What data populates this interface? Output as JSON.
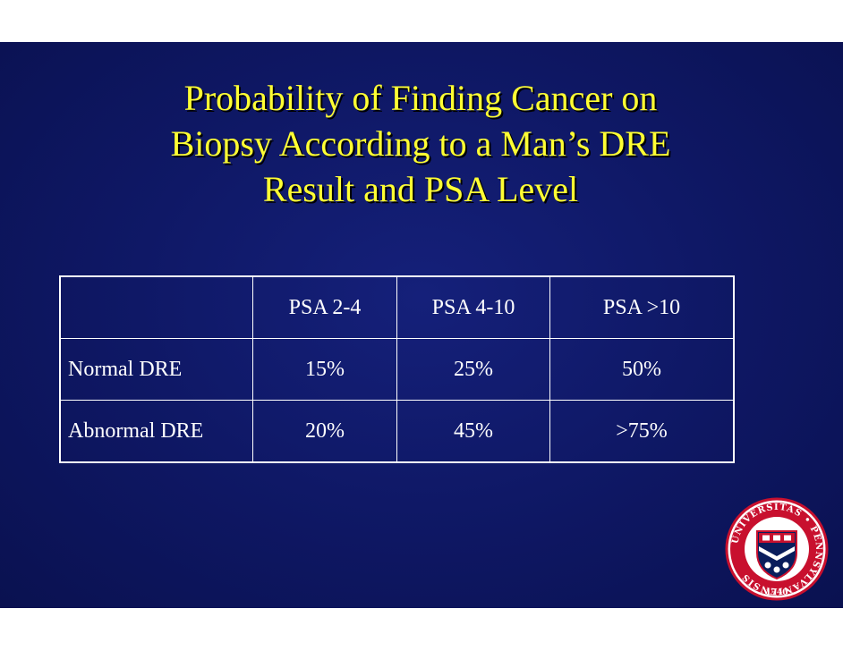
{
  "slide": {
    "title_lines": [
      "Probability of Finding Cancer on",
      "Biopsy According to a Man’s DRE",
      "Result and PSA Level"
    ],
    "table": {
      "headers": [
        "",
        "PSA 2-4",
        "PSA 4-10",
        "PSA >10"
      ],
      "rows": [
        {
          "label": "Normal DRE",
          "values": [
            "15%",
            "25%",
            "50%"
          ]
        },
        {
          "label": "Abnormal DRE",
          "values": [
            "20%",
            "45%",
            ">75%"
          ]
        }
      ]
    },
    "seal": {
      "ring_text": "UNIVERSITAS • PENNSYLVANIENSIS",
      "year": "1740"
    }
  },
  "colors": {
    "background": "#0e1763",
    "title": "#ffff33",
    "text": "#ffffff",
    "seal_red": "#c8102e",
    "seal_navy": "#0a1d5c"
  }
}
